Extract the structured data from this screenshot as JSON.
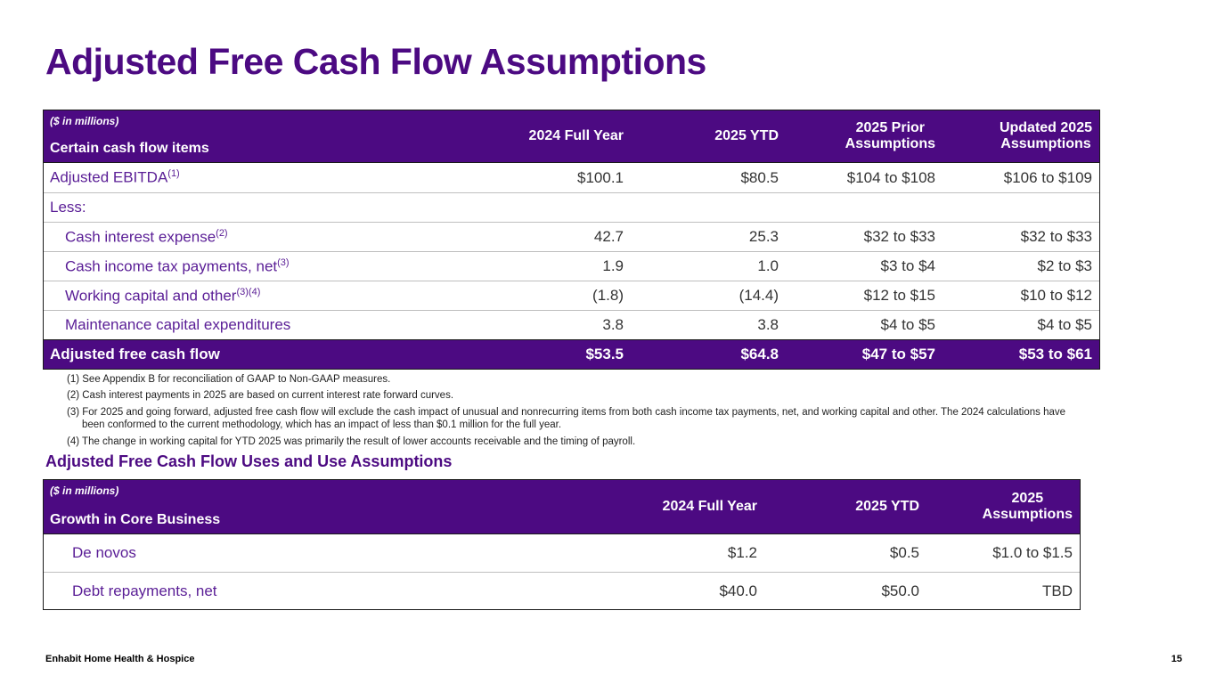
{
  "slide": {
    "title": "Adjusted Free Cash Flow Assumptions",
    "footer": {
      "company": "Enhabit Home Health & Hospice",
      "page_number": "15"
    }
  },
  "colors": {
    "brand_purple": "#4C0A82",
    "row_label_purple": "#5A1E96",
    "value_text": "#333333",
    "row_divider": "#bfbfbf",
    "table_border": "#1a1a1a",
    "header_text": "#ffffff"
  },
  "table1": {
    "units_note": "($ in millions)",
    "row_header": "Certain cash flow items",
    "columns": [
      "2024 Full Year",
      "2025 YTD",
      "2025 Prior\nAssumptions",
      "Updated 2025\nAssumptions"
    ],
    "rows": [
      {
        "label": "Adjusted EBITDA",
        "sup": "(1)",
        "values": [
          "$100.1",
          "$80.5",
          "$104 to $108",
          "$106 to $109"
        ]
      },
      {
        "label": "Less:",
        "sup": "",
        "values": [
          "",
          "",
          "",
          ""
        ]
      },
      {
        "label": "Cash interest expense",
        "sup": "(2)",
        "values": [
          "42.7",
          "25.3",
          "$32 to $33",
          "$32 to $33"
        ]
      },
      {
        "label": "Cash income tax payments, net",
        "sup": "(3)",
        "values": [
          "1.9",
          "1.0",
          "$3 to $4",
          "$2 to $3"
        ]
      },
      {
        "label": "Working capital and other",
        "sup": "(3)(4)",
        "values": [
          "(1.8)",
          "(14.4)",
          "$12 to $15",
          "$10 to $12"
        ]
      },
      {
        "label": "Maintenance capital expenditures",
        "sup": "",
        "values": [
          "3.8",
          "3.8",
          "$4 to $5",
          "$4 to $5"
        ]
      }
    ],
    "total_row": {
      "label": "Adjusted free cash flow",
      "values": [
        "$53.5",
        "$64.8",
        "$47 to $57",
        "$53 to $61"
      ]
    }
  },
  "footnotes": [
    "(1) See Appendix B for reconciliation of GAAP to Non-GAAP measures.",
    "(2) Cash interest payments in 2025 are based on current interest rate forward curves.",
    "(3) For 2025 and going forward, adjusted free cash flow will exclude the cash impact of unusual and nonrecurring items from both cash income tax payments, net, and working capital and other. The 2024 calculations have been conformed to the current methodology, which has an impact of less than $0.1 million for the full year.",
    "(4) The change in working capital for YTD 2025 was primarily the result of lower accounts receivable and the timing of payroll."
  ],
  "section2": {
    "heading": "Adjusted Free Cash Flow Uses and Use Assumptions",
    "table": {
      "units_note": "($ in millions)",
      "row_header": "Growth in Core Business",
      "columns": [
        "2024 Full Year",
        "2025 YTD",
        "2025\nAssumptions"
      ],
      "rows": [
        {
          "label": "De novos",
          "values": [
            "$1.2",
            "$0.5",
            "$1.0 to $1.5"
          ]
        },
        {
          "label": "Debt repayments, net",
          "values": [
            "$40.0",
            "$50.0",
            "TBD"
          ]
        }
      ]
    }
  }
}
